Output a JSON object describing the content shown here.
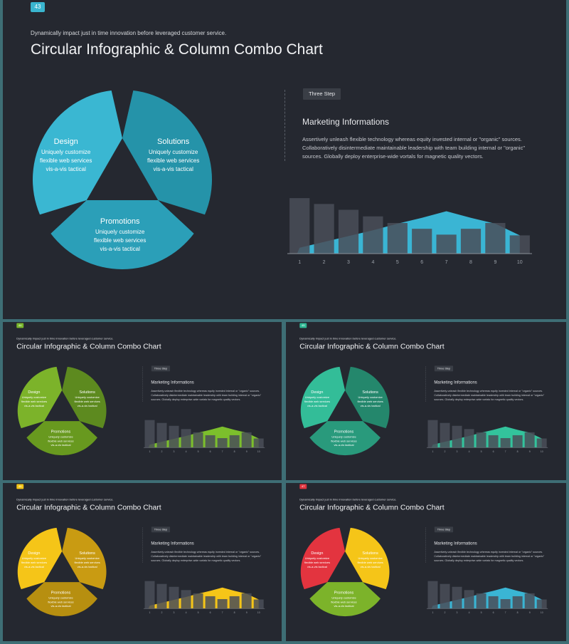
{
  "slides": [
    {
      "id": "main",
      "page_number": "43",
      "subtitle": "Dynamically impact just in time innovation before leveraged customer service.",
      "title": "Circular Infographic & Column Combo Chart",
      "colors": {
        "badge": "#3ab5cf",
        "seg1": "#3ab7d2",
        "seg2": "#2593a9",
        "seg3": "#2b9fb8",
        "area": "#3ab5d4",
        "gap": "#252830"
      },
      "segments": [
        {
          "title": "Design",
          "desc": [
            "Uniquely customize",
            "flexible web services",
            "vis-a-vis tactical"
          ]
        },
        {
          "title": "Solutions",
          "desc": [
            "Uniquely customize",
            "flexible web services",
            "vis-a-vis tactical"
          ]
        },
        {
          "title": "Promotions",
          "desc": [
            "Uniquely customize",
            "flexible web services",
            "vis-a-vis tactical"
          ]
        }
      ],
      "step_label": "Three Step",
      "info_heading": "Marketing Informations",
      "info_body": "Assertively unleash flexible technology whereas equity invested internal or \"organic\" sources. Collaboratively disintermediate maintainable leadership with team building internal or \"organic\" sources. Globally deploy enterprise-wide vortals for magnetic quality vectors."
    },
    {
      "id": "green",
      "page_number": "44",
      "subtitle": "Dynamically impact just in time innovation before leveraged customer service.",
      "title": "Circular Infographic & Column Combo Chart",
      "colors": {
        "badge": "#7ab62c",
        "seg1": "#7cb32a",
        "seg2": "#5d8a1f",
        "seg3": "#68991f",
        "area": "#7cbf2c",
        "gap": "#252830"
      },
      "segments": [
        {
          "title": "Design",
          "desc": [
            "Uniquely customize",
            "flexible web services",
            "vis-a-vis tactical"
          ]
        },
        {
          "title": "Solutions",
          "desc": [
            "Uniquely customize",
            "flexible web services",
            "vis-a-vis tactical"
          ]
        },
        {
          "title": "Promotions",
          "desc": [
            "Uniquely customize",
            "flexible web services",
            "vis-a-vis tactical"
          ]
        }
      ],
      "step_label": "Three Step",
      "info_heading": "Marketing Informations",
      "info_body": "Assertively unleash flexible technology whereas equity invested internal or \"organic\" sources. Collaboratively disintermediate maintainable leadership with team building internal or \"organic\" sources. Globally deploy enterprise-wide vortals for magnetic quality vectors."
    },
    {
      "id": "teal",
      "page_number": "45",
      "subtitle": "Dynamically impact just in time innovation before leveraged customer service.",
      "title": "Circular Infographic & Column Combo Chart",
      "colors": {
        "badge": "#2fb894",
        "seg1": "#33bd98",
        "seg2": "#24876c",
        "seg3": "#299a7c",
        "area": "#33c39c",
        "gap": "#252830"
      },
      "segments": [
        {
          "title": "Design",
          "desc": [
            "Uniquely customize",
            "flexible web services",
            "vis-a-vis tactical"
          ]
        },
        {
          "title": "Solutions",
          "desc": [
            "Uniquely customize",
            "flexible web services",
            "vis-a-vis tactical"
          ]
        },
        {
          "title": "Promotions",
          "desc": [
            "Uniquely customize",
            "flexible web services",
            "vis-a-vis tactical"
          ]
        }
      ],
      "step_label": "Three Step",
      "info_heading": "Marketing Informations",
      "info_body": "Assertively unleash flexible technology whereas equity invested internal or \"organic\" sources. Collaboratively disintermediate maintainable leadership with team building internal or \"organic\" sources. Globally deploy enterprise-wide vortals for magnetic quality vectors."
    },
    {
      "id": "yellow",
      "page_number": "46",
      "subtitle": "Dynamically impact just in time innovation before leveraged customer service.",
      "title": "Circular Infographic & Column Combo Chart",
      "colors": {
        "badge": "#f2c416",
        "seg1": "#f5c518",
        "seg2": "#c99b12",
        "seg3": "#b78f10",
        "area": "#f5c518",
        "gap": "#252830"
      },
      "segments": [
        {
          "title": "Design",
          "desc": [
            "Uniquely customize",
            "flexible web services",
            "vis-a-vis tactical"
          ]
        },
        {
          "title": "Solutions",
          "desc": [
            "Uniquely customize",
            "flexible web services",
            "vis-a-vis tactical"
          ]
        },
        {
          "title": "Promotions",
          "desc": [
            "Uniquely customize",
            "flexible web services",
            "vis-a-vis tactical"
          ]
        }
      ],
      "step_label": "Three Step",
      "info_heading": "Marketing Informations",
      "info_body": "Assertively unleash flexible technology whereas equity invested internal or \"organic\" sources. Collaboratively disintermediate maintainable leadership with team building internal or \"organic\" sources. Globally deploy enterprise-wide vortals for magnetic quality vectors."
    },
    {
      "id": "red",
      "page_number": "47",
      "subtitle": "Dynamically impact just in time innovation before leveraged customer service.",
      "title": "Circular Infographic & Column Combo Chart",
      "colors": {
        "badge": "#e0343e",
        "seg1": "#e3343f",
        "seg2": "#f5c518",
        "seg3": "#7cb32a",
        "area": "#3ab5d4",
        "gap": "#252830"
      },
      "segments": [
        {
          "title": "Design",
          "desc": [
            "Uniquely customize",
            "flexible web services",
            "vis-a-vis tactical"
          ]
        },
        {
          "title": "Solutions",
          "desc": [
            "Uniquely customize",
            "flexible web services",
            "vis-a-vis tactical"
          ]
        },
        {
          "title": "Promotions",
          "desc": [
            "Uniquely customize",
            "flexible web services",
            "vis-a-vis tactical"
          ]
        }
      ],
      "step_label": "Three Step",
      "info_heading": "Marketing Informations",
      "info_body": "Assertively unleash flexible technology whereas equity invested internal or \"organic\" sources. Collaboratively disintermediate maintainable leadership with team building internal or \"organic\" sources. Globally deploy enterprise-wide vortals for magnetic quality vectors."
    }
  ],
  "chart_data": {
    "type": "bar",
    "categories": [
      "1",
      "2",
      "3",
      "4",
      "5",
      "6",
      "7",
      "8",
      "9",
      "10"
    ],
    "series": [
      {
        "type": "bar",
        "values": [
          76,
          68,
          60,
          51,
          42,
          34,
          26,
          34,
          42,
          25
        ]
      },
      {
        "type": "area",
        "values": [
          8,
          16,
          24,
          32,
          41,
          49,
          58,
          49,
          41,
          25
        ]
      }
    ],
    "ylim": [
      0,
      80
    ],
    "grid": false,
    "legend": "none",
    "bar_color": "#4a4e58",
    "axis_color": "#8a8f98"
  }
}
